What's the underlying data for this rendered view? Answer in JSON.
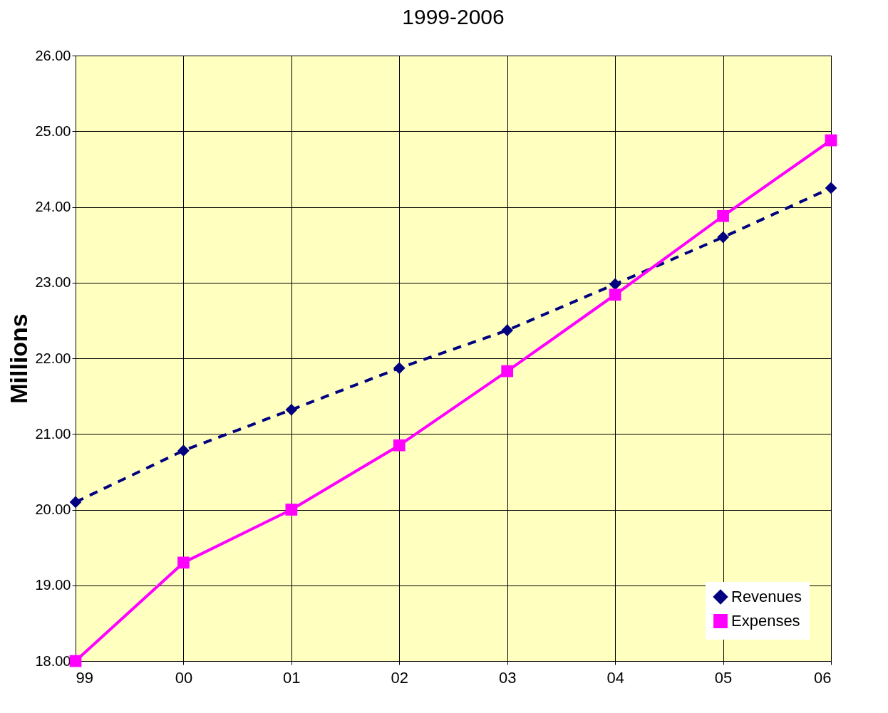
{
  "chart_data": {
    "type": "line",
    "title": "1999-2006",
    "ylabel": "Millions",
    "categories": [
      "99",
      "00",
      "01",
      "02",
      "03",
      "04",
      "05",
      "06"
    ],
    "series": [
      {
        "name": "Revenues",
        "color": "#000080",
        "marker": "diamond",
        "line_style": "dashed",
        "values": [
          20.1,
          20.78,
          21.32,
          21.87,
          22.37,
          22.98,
          23.6,
          24.25
        ]
      },
      {
        "name": "Expenses",
        "color": "#ff00ff",
        "marker": "square",
        "line_style": "solid",
        "values": [
          18.0,
          19.3,
          20.0,
          20.85,
          21.83,
          22.84,
          23.88,
          24.88
        ]
      }
    ],
    "ylim": [
      18,
      26
    ],
    "yticks": [
      {
        "value": 18,
        "label": "18.00"
      },
      {
        "value": 19,
        "label": "19.00"
      },
      {
        "value": 20,
        "label": "20.00"
      },
      {
        "value": 21,
        "label": "21.00"
      },
      {
        "value": 22,
        "label": "22.00"
      },
      {
        "value": 23,
        "label": "23.00"
      },
      {
        "value": 24,
        "label": "24.00"
      },
      {
        "value": 25,
        "label": "25.00"
      },
      {
        "value": 26,
        "label": "26.00"
      }
    ],
    "grid": true,
    "legend": "bottom right"
  }
}
